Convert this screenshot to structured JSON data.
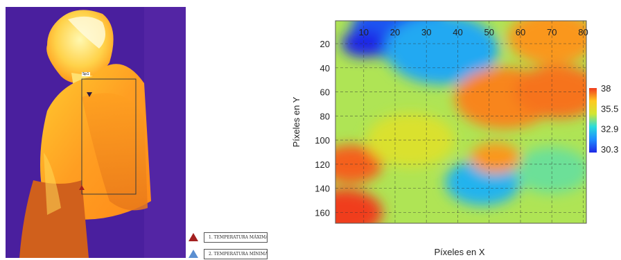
{
  "thermal_image": {
    "roi_label": "Sp1",
    "legend": [
      {
        "label": "1. TEMPERATURA MÁXIMA",
        "color": "#a32020"
      },
      {
        "label": "2. TEMPERATURA MÍNIMA",
        "color": "#5b8fd1"
      }
    ]
  },
  "chart_data": {
    "type": "heatmap",
    "xlabel": "Píxeles en X",
    "ylabel": "Píxeles en Y",
    "x_ticks": [
      10,
      20,
      30,
      40,
      50,
      60,
      70,
      80
    ],
    "y_ticks": [
      20,
      40,
      60,
      80,
      100,
      120,
      140,
      160
    ],
    "xlim": [
      1,
      81
    ],
    "ylim": [
      1,
      169
    ],
    "colorbar": {
      "ticks": [
        "38",
        "35.5",
        "32.9",
        "30.3"
      ],
      "min": 30.3,
      "max": 38,
      "colors": [
        "#1e28e6",
        "#1e8cff",
        "#28dcdc",
        "#d2e632",
        "#ffc81e",
        "#f03c1e"
      ]
    },
    "grid": true,
    "regions": [
      {
        "x": 22,
        "y": 8,
        "r": 16,
        "value": 31.0
      },
      {
        "x": 10,
        "y": 20,
        "r": 7,
        "value": 30.3
      },
      {
        "x": 35,
        "y": 25,
        "r": 18,
        "value": 32.4
      },
      {
        "x": 70,
        "y": 15,
        "r": 14,
        "value": 37.0
      },
      {
        "x": 55,
        "y": 65,
        "r": 16,
        "value": 37.2
      },
      {
        "x": 72,
        "y": 60,
        "r": 14,
        "value": 37.4
      },
      {
        "x": 4,
        "y": 160,
        "r": 12,
        "value": 38.0
      },
      {
        "x": 6,
        "y": 120,
        "r": 10,
        "value": 37.6
      },
      {
        "x": 48,
        "y": 135,
        "r": 12,
        "value": 32.6
      },
      {
        "x": 70,
        "y": 125,
        "r": 12,
        "value": 34.0
      },
      {
        "x": 25,
        "y": 100,
        "r": 14,
        "value": 35.2
      },
      {
        "x": 52,
        "y": 115,
        "r": 8,
        "value": 37.0
      }
    ]
  }
}
